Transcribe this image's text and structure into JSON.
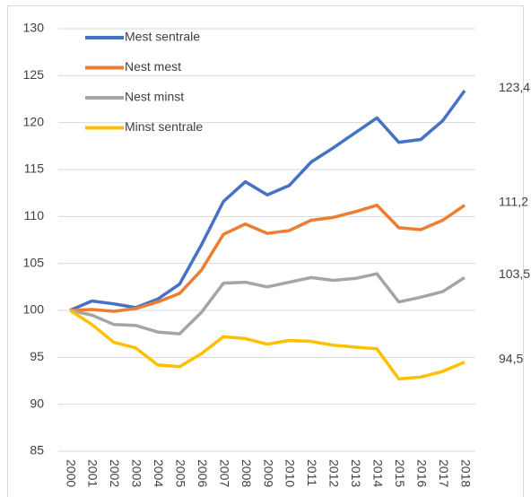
{
  "chart_data": {
    "type": "line",
    "categories": [
      "2000",
      "2001",
      "2002",
      "2003",
      "2004",
      "2005",
      "2006",
      "2007",
      "2008",
      "2009",
      "2010",
      "2011",
      "2012",
      "2013",
      "2014",
      "2015",
      "2016",
      "2017",
      "2018"
    ],
    "series": [
      {
        "name": "Mest sentrale",
        "color": "#4472c4",
        "values": [
          100,
          101,
          100.7,
          100.3,
          101.2,
          102.8,
          107,
          111.6,
          113.7,
          112.3,
          113.3,
          115.8,
          117.3,
          118.9,
          120.5,
          117.9,
          118.2,
          120.2,
          123.4
        ],
        "value_labels": [
          null,
          null,
          null,
          null,
          null,
          null,
          null,
          null,
          null,
          null,
          null,
          null,
          null,
          null,
          null,
          null,
          null,
          null,
          "123,4"
        ]
      },
      {
        "name": "Nest mest",
        "color": "#ed7d31",
        "values": [
          100,
          100.1,
          99.9,
          100.2,
          100.9,
          101.8,
          104.3,
          108.1,
          109.2,
          108.2,
          108.5,
          109.6,
          109.9,
          110.5,
          111.2,
          108.8,
          108.6,
          109.6,
          111.2
        ],
        "value_labels": [
          null,
          null,
          null,
          null,
          null,
          null,
          null,
          null,
          null,
          null,
          null,
          null,
          null,
          null,
          null,
          null,
          null,
          null,
          "111,2"
        ]
      },
      {
        "name": "Nest minst",
        "color": "#a5a5a5",
        "values": [
          100,
          99.5,
          98.5,
          98.4,
          97.7,
          97.5,
          99.8,
          102.9,
          103,
          102.5,
          103,
          103.5,
          103.2,
          103.4,
          103.9,
          100.9,
          101.4,
          102,
          103.5
        ],
        "value_labels": [
          null,
          null,
          null,
          null,
          null,
          null,
          null,
          null,
          null,
          null,
          null,
          null,
          null,
          null,
          null,
          null,
          null,
          null,
          "103,5"
        ]
      },
      {
        "name": "Minst sentrale",
        "color": "#ffc000",
        "values": [
          100,
          98.5,
          96.6,
          96,
          94.2,
          94,
          95.4,
          97.2,
          97,
          96.4,
          96.8,
          96.7,
          96.3,
          96.1,
          95.9,
          92.7,
          92.9,
          93.5,
          94.5
        ],
        "value_labels": [
          null,
          null,
          null,
          null,
          null,
          null,
          null,
          null,
          null,
          null,
          null,
          null,
          null,
          null,
          null,
          null,
          null,
          null,
          "94,5"
        ]
      }
    ],
    "ylim": [
      85,
      130
    ],
    "yticks": [
      85,
      90,
      95,
      100,
      105,
      110,
      115,
      120,
      125,
      130
    ],
    "grid": true,
    "legend": "top-left"
  }
}
